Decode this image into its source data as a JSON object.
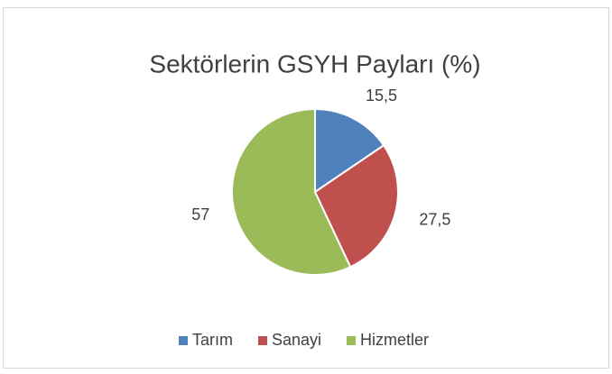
{
  "chart_data": {
    "type": "pie",
    "title": "Sektörlerin GSYH Payları (%)",
    "categories": [
      "Tarım",
      "Sanayi",
      "Hizmetler"
    ],
    "values": [
      15.5,
      27.5,
      57
    ],
    "value_labels": [
      "15,5",
      "27,5",
      "57"
    ],
    "colors": [
      "#4f81bd",
      "#c0504d",
      "#9bbb59"
    ],
    "legend": "bottom"
  }
}
